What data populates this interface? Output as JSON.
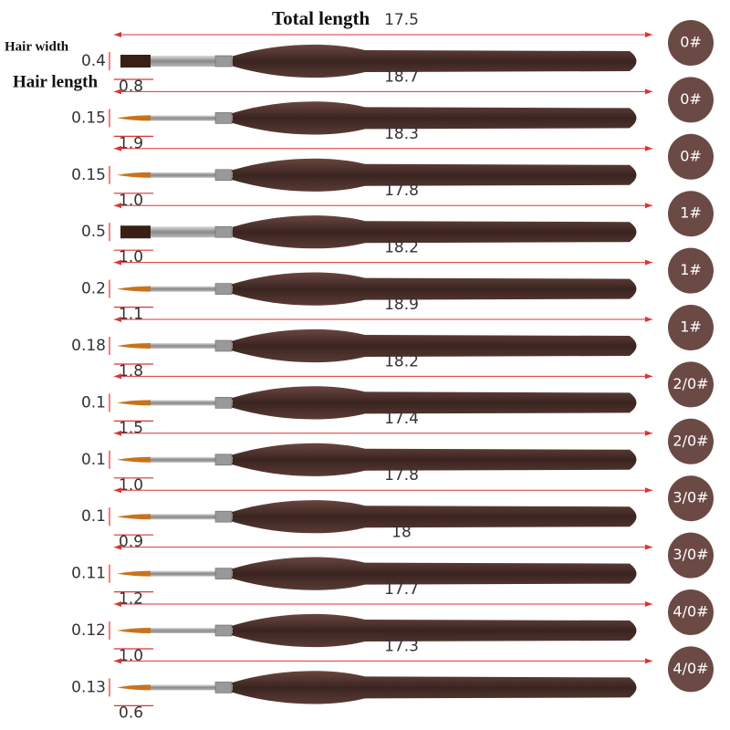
{
  "header": {
    "total_length": "Total length",
    "hair_width": "Hair width",
    "hair_length": "Hair length"
  },
  "brushes": [
    {
      "width": "0.4",
      "hair_length": "0.8",
      "total_length": "17.5",
      "size": "0#"
    },
    {
      "width": "0.15",
      "hair_length": "1.9",
      "total_length": "18.7",
      "size": "0#"
    },
    {
      "width": "0.15",
      "hair_length": "1.0",
      "total_length": "18.3",
      "size": "0#"
    },
    {
      "width": "0.5",
      "hair_length": "1.0",
      "total_length": "17.8",
      "size": "1#"
    },
    {
      "width": "0.2",
      "hair_length": "1.1",
      "total_length": "18.2",
      "size": "1#"
    },
    {
      "width": "0.18",
      "hair_length": "1.8",
      "total_length": "18.9",
      "size": "1#"
    },
    {
      "width": "0.1",
      "hair_length": "1.5",
      "total_length": "18.2",
      "size": "2/0#"
    },
    {
      "width": "0.1",
      "hair_length": "1.0",
      "total_length": "17.4",
      "size": "2/0#"
    },
    {
      "width": "0.1",
      "hair_length": "0.9",
      "total_length": "17.8",
      "size": "3/0#"
    },
    {
      "width": "0.11",
      "hair_length": "1.2",
      "total_length": "18",
      "size": "3/0#"
    },
    {
      "width": "0.12",
      "hair_length": "1.0",
      "total_length": "17.7",
      "size": "4/0#"
    },
    {
      "width": "0.13",
      "hair_length": "0.6",
      "total_length": "17.3",
      "size": "4/0#"
    }
  ]
}
